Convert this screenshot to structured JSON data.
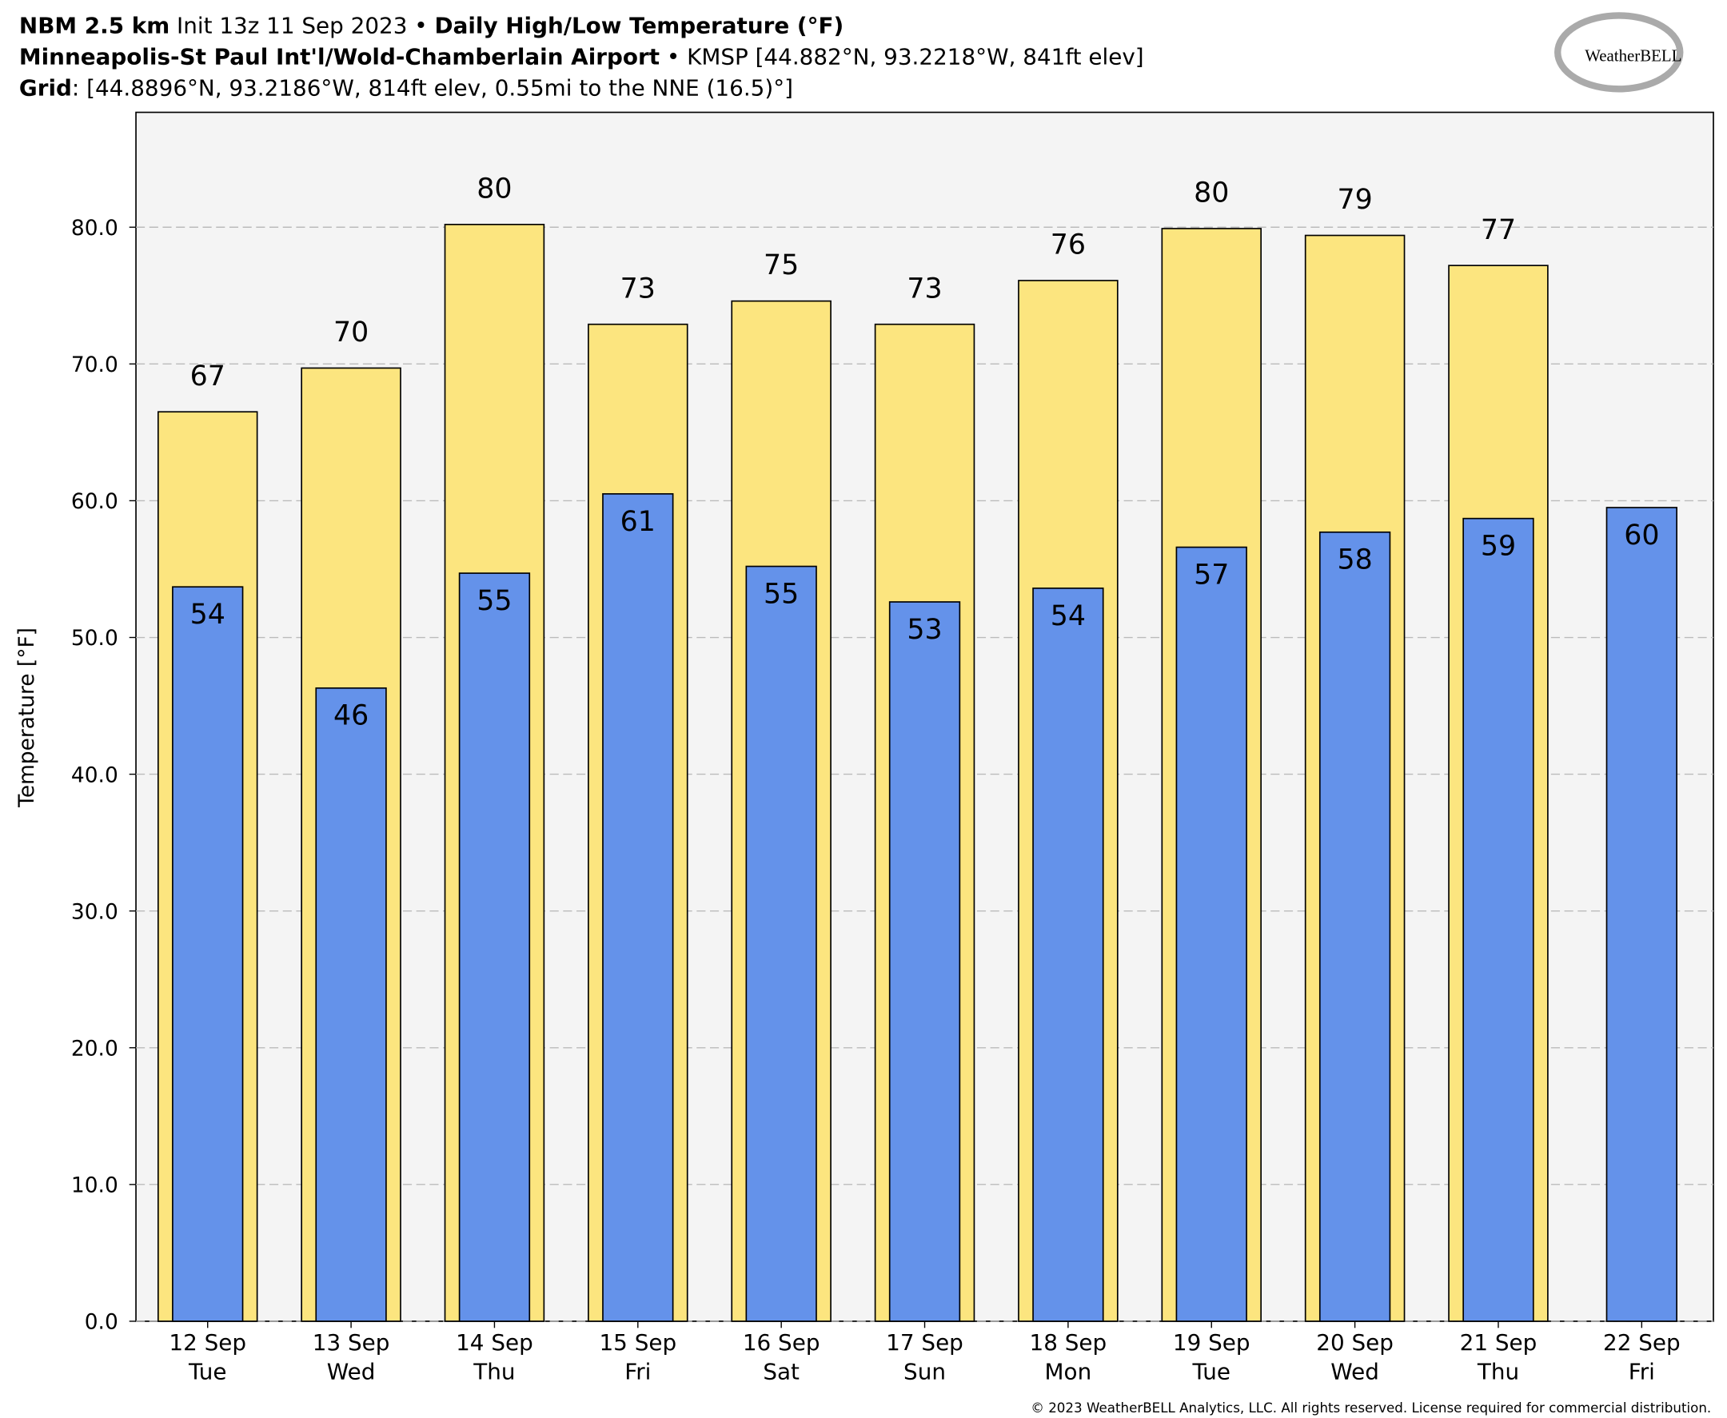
{
  "chart_data": {
    "type": "bar",
    "header": [
      [
        {
          "text": "NBM 2.5 km",
          "bold": true
        },
        {
          "text": " Init 13z 11 Sep 2023 • ",
          "bold": false
        },
        {
          "text": "Daily High/Low Temperature (°F)",
          "bold": true
        }
      ],
      [
        {
          "text": "Minneapolis-St Paul Int'l/Wold-Chamberlain Airport",
          "bold": true
        },
        {
          "text": " • KMSP [44.882°N, 93.2218°W, 841ft elev]",
          "bold": false
        }
      ],
      [
        {
          "text": "Grid",
          "bold": true
        },
        {
          "text": ": [44.8896°N, 93.2186°W, 814ft elev, 0.55mi to the NNE (16.5)°]",
          "bold": false
        }
      ]
    ],
    "logo": "WeatherBELL",
    "ylabel": "Temperature [°F]",
    "footer": "© 2023 WeatherBELL Analytics, LLC. All rights reserved. License required for commercial distribution.",
    "categories": [
      {
        "date": "12 Sep",
        "day": "Tue"
      },
      {
        "date": "13 Sep",
        "day": "Wed"
      },
      {
        "date": "14 Sep",
        "day": "Thu"
      },
      {
        "date": "15 Sep",
        "day": "Fri"
      },
      {
        "date": "16 Sep",
        "day": "Sat"
      },
      {
        "date": "17 Sep",
        "day": "Sun"
      },
      {
        "date": "18 Sep",
        "day": "Mon"
      },
      {
        "date": "19 Sep",
        "day": "Tue"
      },
      {
        "date": "20 Sep",
        "day": "Wed"
      },
      {
        "date": "21 Sep",
        "day": "Thu"
      },
      {
        "date": "22 Sep",
        "day": "Fri"
      }
    ],
    "series": [
      {
        "name": "High",
        "color": "#fce57f",
        "values": [
          66.5,
          69.7,
          80.2,
          72.9,
          74.6,
          72.9,
          76.1,
          79.9,
          79.4,
          77.2,
          null
        ],
        "value_labels": [
          "67",
          "70",
          "80",
          "73",
          "75",
          "73",
          "76",
          "80",
          "79",
          "77",
          null
        ]
      },
      {
        "name": "Low",
        "color": "#6492ea",
        "values": [
          53.7,
          46.3,
          54.7,
          60.5,
          55.2,
          52.6,
          53.6,
          56.6,
          57.7,
          58.7,
          59.5
        ],
        "value_labels": [
          "54",
          "46",
          "55",
          "61",
          "55",
          "53",
          "54",
          "57",
          "58",
          "59",
          "60"
        ]
      }
    ],
    "ylim": [
      0,
      88.4
    ],
    "yticks": [
      {
        "value": 0,
        "label": "0.0"
      },
      {
        "value": 10,
        "label": "10.0"
      },
      {
        "value": 20,
        "label": "20.0"
      },
      {
        "value": 30,
        "label": "30.0"
      },
      {
        "value": 40,
        "label": "40.0"
      },
      {
        "value": 50,
        "label": "50.0"
      },
      {
        "value": 60,
        "label": "60.0"
      },
      {
        "value": 70,
        "label": "70.0"
      },
      {
        "value": 80,
        "label": "80.0"
      }
    ],
    "grid": true
  }
}
